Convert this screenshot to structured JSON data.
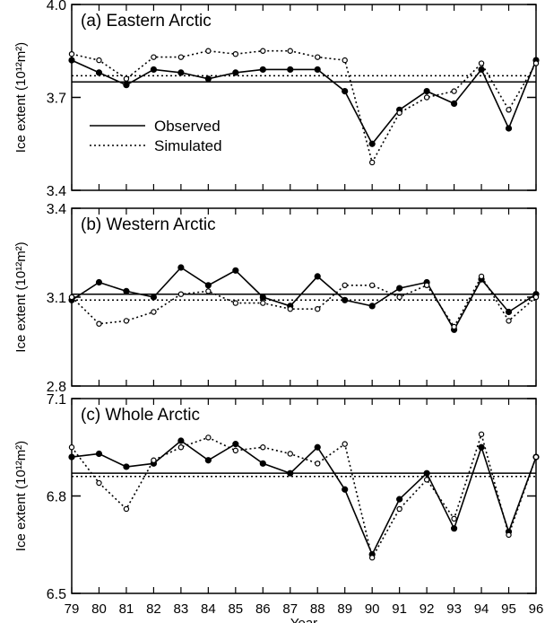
{
  "xlabel": "Year",
  "x_ticks": [
    "79",
    "80",
    "81",
    "82",
    "83",
    "84",
    "85",
    "86",
    "87",
    "88",
    "89",
    "90",
    "91",
    "92",
    "93",
    "94",
    "95",
    "96"
  ],
  "legend": {
    "observed": "Observed",
    "simulated": "Simulated",
    "placement": "inside panel (a), lower-left"
  },
  "chart_data": [
    {
      "type": "line",
      "title": "(a) Eastern Arctic",
      "ylabel": "Ice extent (10¹²m²)",
      "ylim": [
        3.4,
        4.0
      ],
      "yticks": [
        "4.0",
        "3.7",
        "3.4"
      ],
      "x": [
        79,
        80,
        81,
        82,
        83,
        84,
        85,
        86,
        87,
        88,
        89,
        90,
        91,
        92,
        93,
        94,
        95,
        96
      ],
      "series": [
        {
          "name": "Observed",
          "style": "solid",
          "marker": "filled-circle",
          "values": [
            3.82,
            3.78,
            3.74,
            3.79,
            3.78,
            3.76,
            3.78,
            3.79,
            3.79,
            3.79,
            3.72,
            3.55,
            3.66,
            3.72,
            3.68,
            3.79,
            3.6,
            3.82
          ],
          "mean": 3.75
        },
        {
          "name": "Simulated",
          "style": "dotted",
          "marker": "open-circle",
          "values": [
            3.84,
            3.82,
            3.76,
            3.83,
            3.83,
            3.85,
            3.84,
            3.85,
            3.85,
            3.83,
            3.82,
            3.49,
            3.65,
            3.7,
            3.72,
            3.81,
            3.66,
            3.81
          ],
          "mean": 3.77
        }
      ]
    },
    {
      "type": "line",
      "title": "(b) Western Arctic",
      "ylabel": "Ice extent (10¹²m²)",
      "ylim": [
        2.8,
        3.4
      ],
      "yticks": [
        "3.4",
        "3.1",
        "2.8"
      ],
      "x": [
        79,
        80,
        81,
        82,
        83,
        84,
        85,
        86,
        87,
        88,
        89,
        90,
        91,
        92,
        93,
        94,
        95,
        96
      ],
      "series": [
        {
          "name": "Observed",
          "style": "solid",
          "marker": "filled-circle",
          "values": [
            3.09,
            3.15,
            3.12,
            3.1,
            3.2,
            3.14,
            3.19,
            3.1,
            3.07,
            3.17,
            3.09,
            3.07,
            3.13,
            3.15,
            2.99,
            3.16,
            3.05,
            3.11
          ],
          "mean": 3.11
        },
        {
          "name": "Simulated",
          "style": "dotted",
          "marker": "open-circle",
          "values": [
            3.1,
            3.01,
            3.02,
            3.05,
            3.11,
            3.12,
            3.08,
            3.08,
            3.06,
            3.06,
            3.14,
            3.14,
            3.1,
            3.14,
            3.0,
            3.17,
            3.02,
            3.1
          ],
          "mean": 3.09
        }
      ]
    },
    {
      "type": "line",
      "title": "(c) Whole Arctic",
      "ylabel": "Ice extent (10¹²m²)",
      "ylim": [
        6.5,
        7.1
      ],
      "yticks": [
        "7.1",
        "6.8",
        "6.5"
      ],
      "x": [
        79,
        80,
        81,
        82,
        83,
        84,
        85,
        86,
        87,
        88,
        89,
        90,
        91,
        92,
        93,
        94,
        95,
        96
      ],
      "series": [
        {
          "name": "Observed",
          "style": "solid",
          "marker": "filled-circle",
          "values": [
            6.92,
            6.93,
            6.89,
            6.9,
            6.97,
            6.91,
            6.96,
            6.9,
            6.87,
            6.95,
            6.82,
            6.62,
            6.79,
            6.87,
            6.7,
            6.95,
            6.69,
            6.92
          ],
          "mean": 6.87
        },
        {
          "name": "Simulated",
          "style": "dotted",
          "marker": "open-circle",
          "values": [
            6.95,
            6.84,
            6.76,
            6.91,
            6.95,
            6.98,
            6.94,
            6.95,
            6.93,
            6.9,
            6.96,
            6.61,
            6.76,
            6.85,
            6.73,
            6.99,
            6.68,
            6.92
          ],
          "mean": 6.86
        }
      ]
    }
  ]
}
